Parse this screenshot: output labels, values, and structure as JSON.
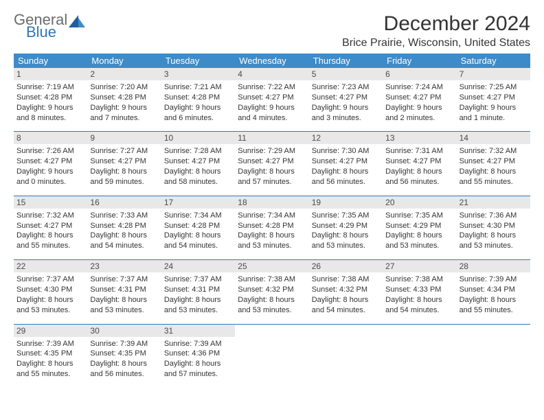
{
  "logo": {
    "word1": "General",
    "word2": "Blue"
  },
  "title": "December 2024",
  "location": "Brice Prairie, Wisconsin, United States",
  "colors": {
    "header_bg": "#3d8bc8",
    "rule": "#2f76b8",
    "daynum_bg": "#e8e8e8",
    "text": "#333333",
    "logo_gray": "#6b6b6b",
    "logo_blue": "#2f76b8"
  },
  "dayNames": [
    "Sunday",
    "Monday",
    "Tuesday",
    "Wednesday",
    "Thursday",
    "Friday",
    "Saturday"
  ],
  "weeks": [
    [
      {
        "n": "1",
        "sr": "7:19 AM",
        "ss": "4:28 PM",
        "dl": "9 hours and 8 minutes."
      },
      {
        "n": "2",
        "sr": "7:20 AM",
        "ss": "4:28 PM",
        "dl": "9 hours and 7 minutes."
      },
      {
        "n": "3",
        "sr": "7:21 AM",
        "ss": "4:28 PM",
        "dl": "9 hours and 6 minutes."
      },
      {
        "n": "4",
        "sr": "7:22 AM",
        "ss": "4:27 PM",
        "dl": "9 hours and 4 minutes."
      },
      {
        "n": "5",
        "sr": "7:23 AM",
        "ss": "4:27 PM",
        "dl": "9 hours and 3 minutes."
      },
      {
        "n": "6",
        "sr": "7:24 AM",
        "ss": "4:27 PM",
        "dl": "9 hours and 2 minutes."
      },
      {
        "n": "7",
        "sr": "7:25 AM",
        "ss": "4:27 PM",
        "dl": "9 hours and 1 minute."
      }
    ],
    [
      {
        "n": "8",
        "sr": "7:26 AM",
        "ss": "4:27 PM",
        "dl": "9 hours and 0 minutes."
      },
      {
        "n": "9",
        "sr": "7:27 AM",
        "ss": "4:27 PM",
        "dl": "8 hours and 59 minutes."
      },
      {
        "n": "10",
        "sr": "7:28 AM",
        "ss": "4:27 PM",
        "dl": "8 hours and 58 minutes."
      },
      {
        "n": "11",
        "sr": "7:29 AM",
        "ss": "4:27 PM",
        "dl": "8 hours and 57 minutes."
      },
      {
        "n": "12",
        "sr": "7:30 AM",
        "ss": "4:27 PM",
        "dl": "8 hours and 56 minutes."
      },
      {
        "n": "13",
        "sr": "7:31 AM",
        "ss": "4:27 PM",
        "dl": "8 hours and 56 minutes."
      },
      {
        "n": "14",
        "sr": "7:32 AM",
        "ss": "4:27 PM",
        "dl": "8 hours and 55 minutes."
      }
    ],
    [
      {
        "n": "15",
        "sr": "7:32 AM",
        "ss": "4:27 PM",
        "dl": "8 hours and 55 minutes."
      },
      {
        "n": "16",
        "sr": "7:33 AM",
        "ss": "4:28 PM",
        "dl": "8 hours and 54 minutes."
      },
      {
        "n": "17",
        "sr": "7:34 AM",
        "ss": "4:28 PM",
        "dl": "8 hours and 54 minutes."
      },
      {
        "n": "18",
        "sr": "7:34 AM",
        "ss": "4:28 PM",
        "dl": "8 hours and 53 minutes."
      },
      {
        "n": "19",
        "sr": "7:35 AM",
        "ss": "4:29 PM",
        "dl": "8 hours and 53 minutes."
      },
      {
        "n": "20",
        "sr": "7:35 AM",
        "ss": "4:29 PM",
        "dl": "8 hours and 53 minutes."
      },
      {
        "n": "21",
        "sr": "7:36 AM",
        "ss": "4:30 PM",
        "dl": "8 hours and 53 minutes."
      }
    ],
    [
      {
        "n": "22",
        "sr": "7:37 AM",
        "ss": "4:30 PM",
        "dl": "8 hours and 53 minutes."
      },
      {
        "n": "23",
        "sr": "7:37 AM",
        "ss": "4:31 PM",
        "dl": "8 hours and 53 minutes."
      },
      {
        "n": "24",
        "sr": "7:37 AM",
        "ss": "4:31 PM",
        "dl": "8 hours and 53 minutes."
      },
      {
        "n": "25",
        "sr": "7:38 AM",
        "ss": "4:32 PM",
        "dl": "8 hours and 53 minutes."
      },
      {
        "n": "26",
        "sr": "7:38 AM",
        "ss": "4:32 PM",
        "dl": "8 hours and 54 minutes."
      },
      {
        "n": "27",
        "sr": "7:38 AM",
        "ss": "4:33 PM",
        "dl": "8 hours and 54 minutes."
      },
      {
        "n": "28",
        "sr": "7:39 AM",
        "ss": "4:34 PM",
        "dl": "8 hours and 55 minutes."
      }
    ],
    [
      {
        "n": "29",
        "sr": "7:39 AM",
        "ss": "4:35 PM",
        "dl": "8 hours and 55 minutes."
      },
      {
        "n": "30",
        "sr": "7:39 AM",
        "ss": "4:35 PM",
        "dl": "8 hours and 56 minutes."
      },
      {
        "n": "31",
        "sr": "7:39 AM",
        "ss": "4:36 PM",
        "dl": "8 hours and 57 minutes."
      },
      null,
      null,
      null,
      null
    ]
  ],
  "labels": {
    "sunrise": "Sunrise:",
    "sunset": "Sunset:",
    "daylight": "Daylight:"
  }
}
